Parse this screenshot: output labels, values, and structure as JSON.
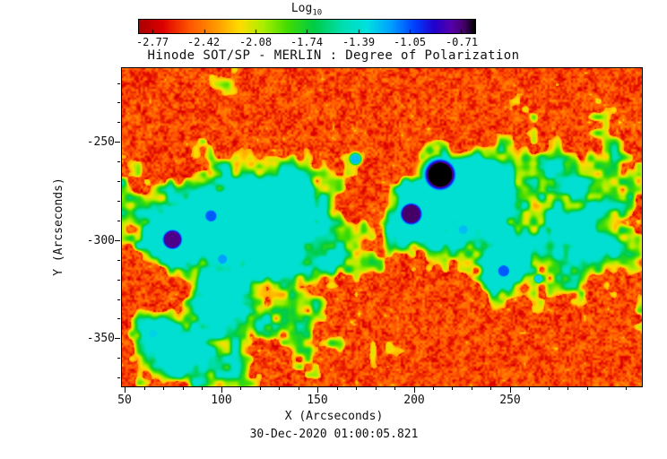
{
  "figure": {
    "colorbar": {
      "label_main": "Log",
      "label_sub": "10",
      "tick_labels": [
        "-2.77",
        "-2.42",
        "-2.08",
        "-1.74",
        "-1.39",
        "-1.05",
        "-0.71"
      ]
    },
    "title": "Hinode SOT/SP - MERLIN : Degree of Polarization",
    "y_axis_label": "Y (Arcseconds)",
    "x_axis_label": "X (Arcseconds)",
    "x_tick_labels": [
      "50",
      "100",
      "150",
      "200",
      "250"
    ],
    "y_tick_labels": [
      "-250",
      "-300",
      "-350"
    ],
    "timestamp": "30-Dec-2020 01:00:05.821"
  },
  "chart_data": {
    "type": "heatmap",
    "title": "Hinode SOT/SP - MERLIN : Degree of Polarization",
    "xlabel": "X (Arcseconds)",
    "ylabel": "Y (Arcseconds)",
    "timestamp": "30-Dec-2020 01:00:05.821",
    "x_range": [
      48,
      318
    ],
    "y_range": [
      -374,
      -212
    ],
    "x_tick_values": [
      50,
      100,
      150,
      200,
      250
    ],
    "y_tick_values": [
      -250,
      -300,
      -350
    ],
    "x_minor_step": 10,
    "y_minor_step": 10,
    "colorbar": {
      "label": "Log10",
      "quantity": "log10 Degree of Polarization",
      "tick_values": [
        -2.77,
        -2.42,
        -2.08,
        -1.74,
        -1.39,
        -1.05,
        -0.71
      ],
      "range": [
        -2.86,
        -0.62
      ]
    },
    "colormap_stops": [
      [
        0.0,
        "#aa0000"
      ],
      [
        0.07,
        "#dd0000"
      ],
      [
        0.15,
        "#ff5500"
      ],
      [
        0.23,
        "#ff9900"
      ],
      [
        0.3,
        "#ffdd00"
      ],
      [
        0.37,
        "#aaee00"
      ],
      [
        0.44,
        "#44dd00"
      ],
      [
        0.52,
        "#00cc44"
      ],
      [
        0.6,
        "#00ddaa"
      ],
      [
        0.68,
        "#00e0e0"
      ],
      [
        0.75,
        "#00a0ff"
      ],
      [
        0.82,
        "#0040ff"
      ],
      [
        0.88,
        "#2200cc"
      ],
      [
        0.93,
        "#5500aa"
      ],
      [
        0.97,
        "#440066"
      ],
      [
        1.0,
        "#000000"
      ]
    ],
    "content_notes": {
      "background": "quiet-sun granulation, log10 p ~ -2.8 to -2.3 (red/orange)",
      "network": "magnetic network lanes, log10 p ~ -1.9 to -1.3 (green/cyan)",
      "pores": "dark pores / strong-field patches, log10 p ~ -1.0 to -0.7 (blue/purple/black)"
    },
    "features": {
      "network_threshold": 0.56,
      "pores": [
        {
          "x": 213,
          "y": -266,
          "r": 6.5,
          "s": 1.0
        },
        {
          "x": 198,
          "y": -286,
          "r": 4.6,
          "s": 0.97
        },
        {
          "x": 74,
          "y": -299,
          "r": 4.2,
          "s": 0.95
        },
        {
          "x": 94,
          "y": -287,
          "r": 2.8,
          "s": 0.8
        },
        {
          "x": 100,
          "y": -309,
          "r": 2.3,
          "s": 0.75
        },
        {
          "x": 169,
          "y": -258,
          "r": 2.3,
          "s": 0.72
        },
        {
          "x": 246,
          "y": -315,
          "r": 2.8,
          "s": 0.8
        },
        {
          "x": 264,
          "y": -319,
          "r": 1.8,
          "s": 0.7
        },
        {
          "x": 225,
          "y": -294,
          "r": 2.3,
          "s": 0.72
        },
        {
          "x": 64,
          "y": -347,
          "r": 2.0,
          "s": 0.7
        }
      ],
      "network_regions": [
        {
          "x": 213,
          "y": -266,
          "r": 13,
          "s": 0.42
        },
        {
          "x": 199,
          "y": -287,
          "r": 12,
          "s": 0.42
        },
        {
          "x": 74,
          "y": -299,
          "r": 11,
          "s": 0.4
        },
        {
          "x": 92,
          "y": -289,
          "r": 13,
          "s": 0.36
        },
        {
          "x": 118,
          "y": -283,
          "r": 14,
          "s": 0.3
        },
        {
          "x": 143,
          "y": -272,
          "r": 13,
          "s": 0.3
        },
        {
          "x": 168,
          "y": -258,
          "r": 11,
          "s": 0.34
        },
        {
          "x": 172,
          "y": -300,
          "r": 12,
          "s": 0.26
        },
        {
          "x": 245,
          "y": -313,
          "r": 11,
          "s": 0.36
        },
        {
          "x": 226,
          "y": -294,
          "r": 9,
          "s": 0.3
        },
        {
          "x": 98,
          "y": -330,
          "r": 10,
          "s": 0.26
        },
        {
          "x": 65,
          "y": -346,
          "r": 9,
          "s": 0.3
        },
        {
          "x": 80,
          "y": -360,
          "r": 12,
          "s": 0.28
        },
        {
          "x": 230,
          "y": -270,
          "r": 10,
          "s": 0.28
        },
        {
          "x": 237,
          "y": -272,
          "r": 10,
          "s": 0.25
        },
        {
          "x": 290,
          "y": -300,
          "r": 12,
          "s": 0.22
        },
        {
          "x": 130,
          "y": -300,
          "r": 12,
          "s": 0.24
        }
      ]
    },
    "seed": 11
  }
}
